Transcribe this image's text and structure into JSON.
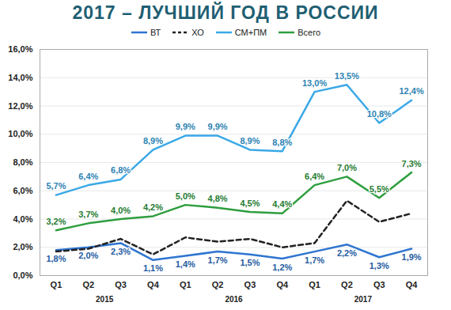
{
  "chart_data": {
    "type": "line",
    "title": "2017 – ЛУЧШИЙ ГОД В РОССИИ",
    "categories": [
      "Q1",
      "Q2",
      "Q3",
      "Q4",
      "Q1",
      "Q2",
      "Q3",
      "Q4",
      "Q1",
      "Q2",
      "Q3",
      "Q4"
    ],
    "groups": [
      "2015",
      "2016",
      "2017"
    ],
    "series": [
      {
        "name": "ВТ",
        "color": "#2e75d0",
        "line_style": "solid",
        "data_labels": true,
        "values": [
          1.8,
          2.0,
          2.3,
          1.1,
          1.4,
          1.7,
          1.5,
          1.2,
          1.7,
          2.2,
          1.3,
          1.9
        ],
        "value_labels": [
          "1,8%",
          "2,0%",
          "2,3%",
          "1,1%",
          "1,4%",
          "1,7%",
          "1,5%",
          "1,2%",
          "1,7%",
          "2,2%",
          "1,3%",
          "1,9%"
        ]
      },
      {
        "name": "ХО",
        "color": "#222222",
        "line_style": "dashed",
        "data_labels": false,
        "values": [
          1.7,
          1.9,
          2.6,
          1.5,
          2.7,
          2.4,
          2.6,
          2.0,
          2.3,
          5.3,
          3.8,
          4.4
        ]
      },
      {
        "name": "СМ+ПМ",
        "color": "#3aa8e6",
        "line_style": "solid",
        "data_labels": true,
        "values": [
          5.7,
          6.4,
          6.8,
          8.9,
          9.9,
          9.9,
          8.9,
          8.8,
          13.0,
          13.5,
          10.8,
          12.4
        ],
        "value_labels": [
          "5,7%",
          "6,4%",
          "6,8%",
          "8,9%",
          "9,9%",
          "9,9%",
          "8,9%",
          "8,8%",
          "13,0%",
          "13,5%",
          "10,8%",
          "12,4%"
        ]
      },
      {
        "name": "Всего",
        "color": "#2e9e3e",
        "line_style": "solid",
        "data_labels": true,
        "values": [
          3.2,
          3.7,
          4.0,
          4.2,
          5.0,
          4.8,
          4.5,
          4.4,
          6.4,
          7.0,
          5.5,
          7.3
        ],
        "value_labels": [
          "3,2%",
          "3,7%",
          "4,0%",
          "4,2%",
          "5,0%",
          "4,8%",
          "4,5%",
          "4,4%",
          "6,4%",
          "7,0%",
          "5,5%",
          "7,3%"
        ]
      }
    ],
    "ylim": [
      0,
      16
    ],
    "yticks": [
      {
        "value": 0,
        "label": "0,0%"
      },
      {
        "value": 2,
        "label": "2,0%"
      },
      {
        "value": 4,
        "label": "4,0%"
      },
      {
        "value": 6,
        "label": "6,0%"
      },
      {
        "value": 8,
        "label": "8,0%"
      },
      {
        "value": 10,
        "label": "10,0%"
      },
      {
        "value": 12,
        "label": "12,0%"
      },
      {
        "value": 14,
        "label": "14,0%"
      },
      {
        "value": 16,
        "label": "16,0%"
      }
    ],
    "grid": true,
    "legend": "top"
  }
}
